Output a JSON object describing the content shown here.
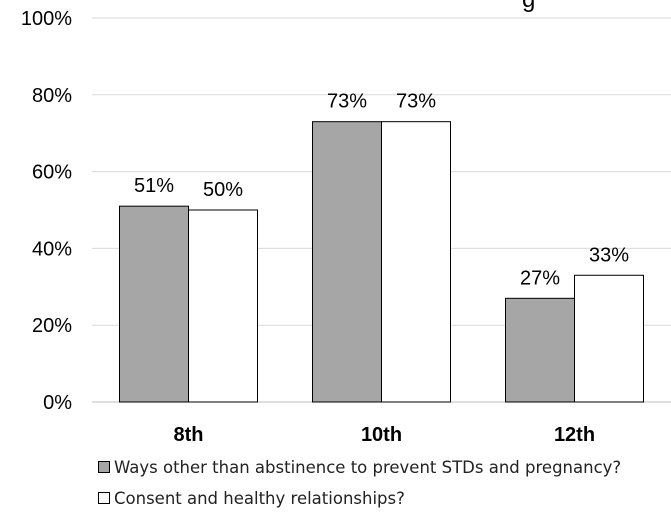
{
  "chart_data": {
    "type": "bar",
    "title_fragment": "g",
    "categories": [
      "8th",
      "10th",
      "12th"
    ],
    "series": [
      {
        "name": "Ways other than abstinence to prevent STDs and pregnancy?",
        "values": [
          51,
          73,
          27
        ],
        "labels": [
          "51%",
          "73%",
          "27%"
        ],
        "color": "#a6a6a6"
      },
      {
        "name": "Consent and healthy relationships?",
        "values": [
          50,
          73,
          33
        ],
        "labels": [
          "50%",
          "73%",
          "33%"
        ],
        "color": "#ffffff"
      }
    ],
    "ylim": [
      0,
      100
    ],
    "yticks": [
      "0%",
      "20%",
      "40%",
      "60%",
      "80%",
      "100%"
    ],
    "grid": true,
    "legend_position": "bottom"
  }
}
